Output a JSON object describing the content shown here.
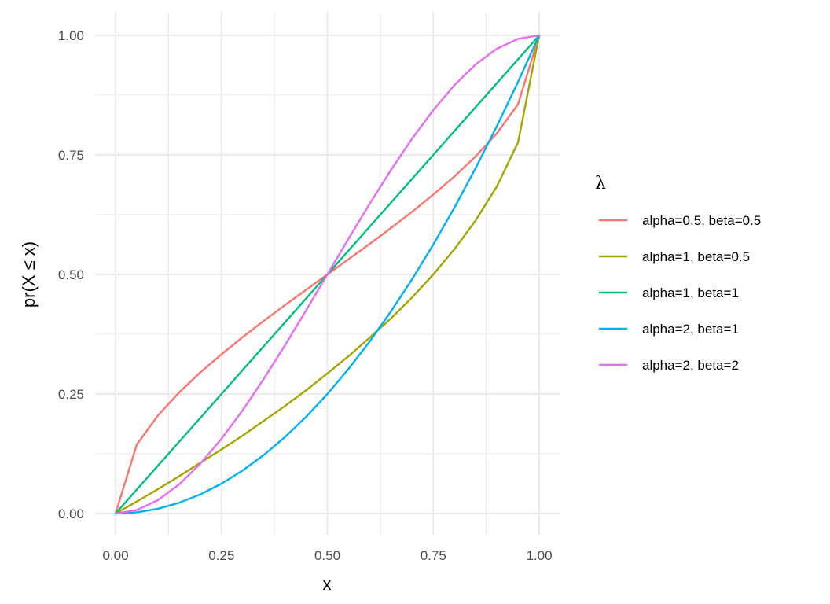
{
  "chart_data": {
    "type": "line",
    "title": "",
    "xlabel": "x",
    "ylabel": "pr(X ≤ x)",
    "xlim": [
      0,
      1
    ],
    "ylim": [
      0,
      1
    ],
    "x_ticks": [
      "0.00",
      "0.25",
      "0.50",
      "0.75",
      "1.00"
    ],
    "y_ticks": [
      "0.00",
      "0.25",
      "0.50",
      "0.75",
      "1.00"
    ],
    "grid": true,
    "legend": {
      "title": "λ",
      "position": "right"
    },
    "x": [
      0,
      0.05,
      0.1,
      0.15,
      0.2,
      0.25,
      0.3,
      0.35,
      0.4,
      0.45,
      0.5,
      0.55,
      0.6,
      0.65,
      0.7,
      0.75,
      0.8,
      0.85,
      0.9,
      0.95,
      1
    ],
    "series": [
      {
        "name": "alpha=0.5, beta=0.5",
        "color": "#F8766D",
        "values": [
          0,
          0.144,
          0.205,
          0.253,
          0.295,
          0.333,
          0.369,
          0.403,
          0.436,
          0.468,
          0.5,
          0.532,
          0.564,
          0.597,
          0.631,
          0.667,
          0.705,
          0.747,
          0.795,
          0.856,
          1
        ]
      },
      {
        "name": "alpha=1, beta=0.5",
        "color": "#A3A500",
        "values": [
          0,
          0.025,
          0.051,
          0.078,
          0.106,
          0.134,
          0.163,
          0.194,
          0.225,
          0.258,
          0.293,
          0.329,
          0.368,
          0.408,
          0.452,
          0.5,
          0.553,
          0.613,
          0.684,
          0.776,
          1
        ]
      },
      {
        "name": "alpha=1, beta=1",
        "color": "#00BF7D",
        "values": [
          0,
          0.05,
          0.1,
          0.15,
          0.2,
          0.25,
          0.3,
          0.35,
          0.4,
          0.45,
          0.5,
          0.55,
          0.6,
          0.65,
          0.7,
          0.75,
          0.8,
          0.85,
          0.9,
          0.95,
          1
        ]
      },
      {
        "name": "alpha=2, beta=1",
        "color": "#00B0F6",
        "values": [
          0,
          0.0025,
          0.01,
          0.0225,
          0.04,
          0.0625,
          0.09,
          0.1225,
          0.16,
          0.2025,
          0.25,
          0.3025,
          0.36,
          0.4225,
          0.49,
          0.5625,
          0.64,
          0.7225,
          0.81,
          0.9025,
          1
        ]
      },
      {
        "name": "alpha=2, beta=2",
        "color": "#E76BF3",
        "values": [
          0,
          0.00725,
          0.028,
          0.06075,
          0.104,
          0.15625,
          0.216,
          0.28175,
          0.352,
          0.42525,
          0.5,
          0.57475,
          0.648,
          0.71825,
          0.784,
          0.84375,
          0.896,
          0.93925,
          0.972,
          0.99275,
          1
        ]
      }
    ]
  }
}
